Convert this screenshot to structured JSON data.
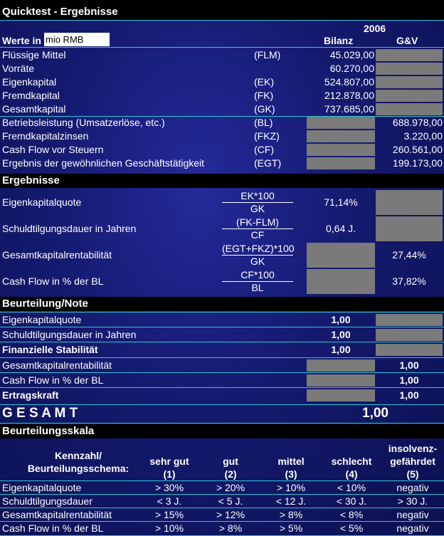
{
  "title": "Quicktest - Ergebnisse",
  "header": {
    "year": "2006",
    "werte_in_label": "Werte in",
    "unit_value": "mio RMB",
    "col_bilanz": "Bilanz",
    "col_guv": "G&V"
  },
  "inputs": [
    {
      "label": "Flüssige Mittel",
      "code": "(FLM)",
      "bilanz": "45.029,00",
      "guv": ""
    },
    {
      "label": "Vorräte",
      "code": "",
      "bilanz": "60.270,00",
      "guv": ""
    },
    {
      "label": "Eigenkapital",
      "code": "(EK)",
      "bilanz": "524.807,00",
      "guv": ""
    },
    {
      "label": "Fremdkapital",
      "code": "(FK)",
      "bilanz": "212.878,00",
      "guv": ""
    },
    {
      "label": "Gesamtkapital",
      "code": "(GK)",
      "bilanz": "737.685,00",
      "guv": ""
    },
    {
      "label": "Betriebsleistung (Umsatzerlöse, etc.)",
      "code": "(BL)",
      "bilanz": "",
      "guv": "688.978,00"
    },
    {
      "label": "Fremdkapitalzinsen",
      "code": "(FKZ)",
      "bilanz": "",
      "guv": "3.220,00"
    },
    {
      "label": "Cash Flow vor Steuern",
      "code": "(CF)",
      "bilanz": "",
      "guv": "260.561,00"
    },
    {
      "label": "Ergebnis der gewöhnlichen Geschäftstätigkeit",
      "code": "(EGT)",
      "bilanz": "",
      "guv": "199.173,00"
    }
  ],
  "ergebnisse": {
    "title": "Ergebnisse",
    "rows": [
      {
        "label": "Eigenkapitalquote",
        "numerator": "EK*100",
        "denominator": "GK",
        "bilanz": "71,14%",
        "guv": ""
      },
      {
        "label": "Schuldtilgungsdauer in Jahren",
        "numerator": "(FK-FLM)",
        "denominator": "CF",
        "bilanz": "0,64 J.",
        "guv": ""
      },
      {
        "label": "Gesamtkapitalrentabilität",
        "numerator": "(EGT+FKZ)*100",
        "denominator": "GK",
        "bilanz": "",
        "guv": "27,44%"
      },
      {
        "label": "Cash Flow in % der BL",
        "numerator": "CF*100",
        "denominator": "BL",
        "bilanz": "",
        "guv": "37,82%"
      }
    ]
  },
  "beurteilung": {
    "title": "Beurteilung/Note",
    "rows": [
      {
        "label": "Eigenkapitalquote",
        "bilanz": "1,00",
        "guv": ""
      },
      {
        "label": "Schuldtilgungsdauer in Jahren",
        "bilanz": "1,00",
        "guv": ""
      },
      {
        "label": "Finanzielle Stabilität",
        "bilanz": "1,00",
        "guv": ""
      },
      {
        "label": "Gesamtkapitalrentabilität",
        "bilanz": "",
        "guv": "1,00"
      },
      {
        "label": "Cash Flow in % der BL",
        "bilanz": "",
        "guv": "1,00"
      },
      {
        "label": "Ertragskraft",
        "bilanz": "",
        "guv": "1,00"
      }
    ],
    "gesamt_label": "G E S A M T",
    "gesamt_value": "1,00"
  },
  "skala": {
    "title": "Beurteilungsskala",
    "header_label_1": "Kennzahl/",
    "header_label_2": "Beurteilungsschema:",
    "columns": [
      {
        "l1": "",
        "l2": "sehr gut",
        "l3": "(1)"
      },
      {
        "l1": "",
        "l2": "gut",
        "l3": "(2)"
      },
      {
        "l1": "",
        "l2": "mittel",
        "l3": "(3)"
      },
      {
        "l1": "",
        "l2": "schlecht",
        "l3": "(4)"
      },
      {
        "l1": "insolvenz-",
        "l2": "gefährdet",
        "l3": "(5)"
      }
    ],
    "rows": [
      {
        "label": "Eigenkapitalquote",
        "values": [
          "> 30%",
          "> 20%",
          "> 10%",
          "< 10%",
          "negativ"
        ]
      },
      {
        "label": "Schuldtilgungsdauer",
        "values": [
          "< 3 J.",
          "< 5 J.",
          "< 12 J.",
          "< 30 J.",
          "> 30 J."
        ]
      },
      {
        "label": "Gesamtkapitalrentabilität",
        "values": [
          "> 15%",
          "> 12%",
          "> 8%",
          "< 8%",
          "negativ"
        ]
      },
      {
        "label": "Cash Flow in % der BL",
        "values": [
          "> 10%",
          "> 8%",
          "> 5%",
          "< 5%",
          "negativ"
        ]
      }
    ]
  }
}
